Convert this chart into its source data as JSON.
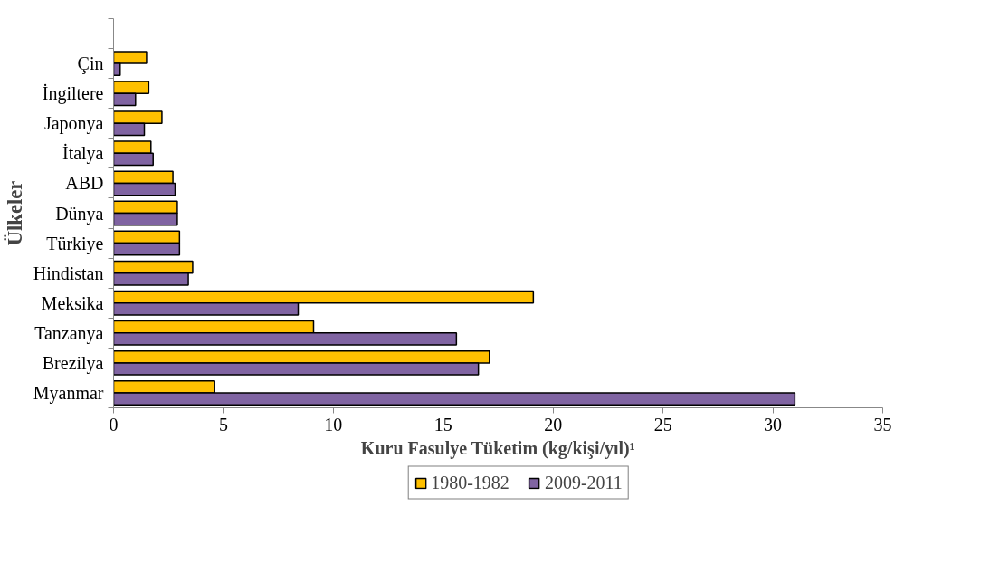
{
  "chart_data": {
    "type": "bar",
    "orientation": "horizontal",
    "xlabel": "Kuru Fasulye Tüketim (kg/kişi/yıl)¹",
    "ylabel": "Ülkeler",
    "categories": [
      null,
      "Çin",
      "İngiltere",
      "Japonya",
      "İtalya",
      "ABD",
      "Dünya",
      "Türkiye",
      "Hindistan",
      "Meksika",
      "Tanzanya",
      "Brezilya",
      "Myanmar"
    ],
    "series": [
      {
        "name": "1980-1982",
        "color": "#ffc000",
        "values": [
          null,
          1.5,
          1.6,
          2.2,
          1.7,
          2.7,
          2.9,
          3.0,
          3.6,
          19.1,
          9.1,
          17.1,
          4.6
        ]
      },
      {
        "name": "2009-2011",
        "color": "#8064a2",
        "values": [
          null,
          0.3,
          1.0,
          1.4,
          1.8,
          2.8,
          2.9,
          3.0,
          3.4,
          8.4,
          15.6,
          16.6,
          31.0
        ]
      }
    ],
    "xlim": [
      0,
      35
    ],
    "xticks": [
      0,
      5,
      10,
      15,
      20,
      25,
      30,
      35
    ],
    "grid": false,
    "legend": "bottom"
  }
}
